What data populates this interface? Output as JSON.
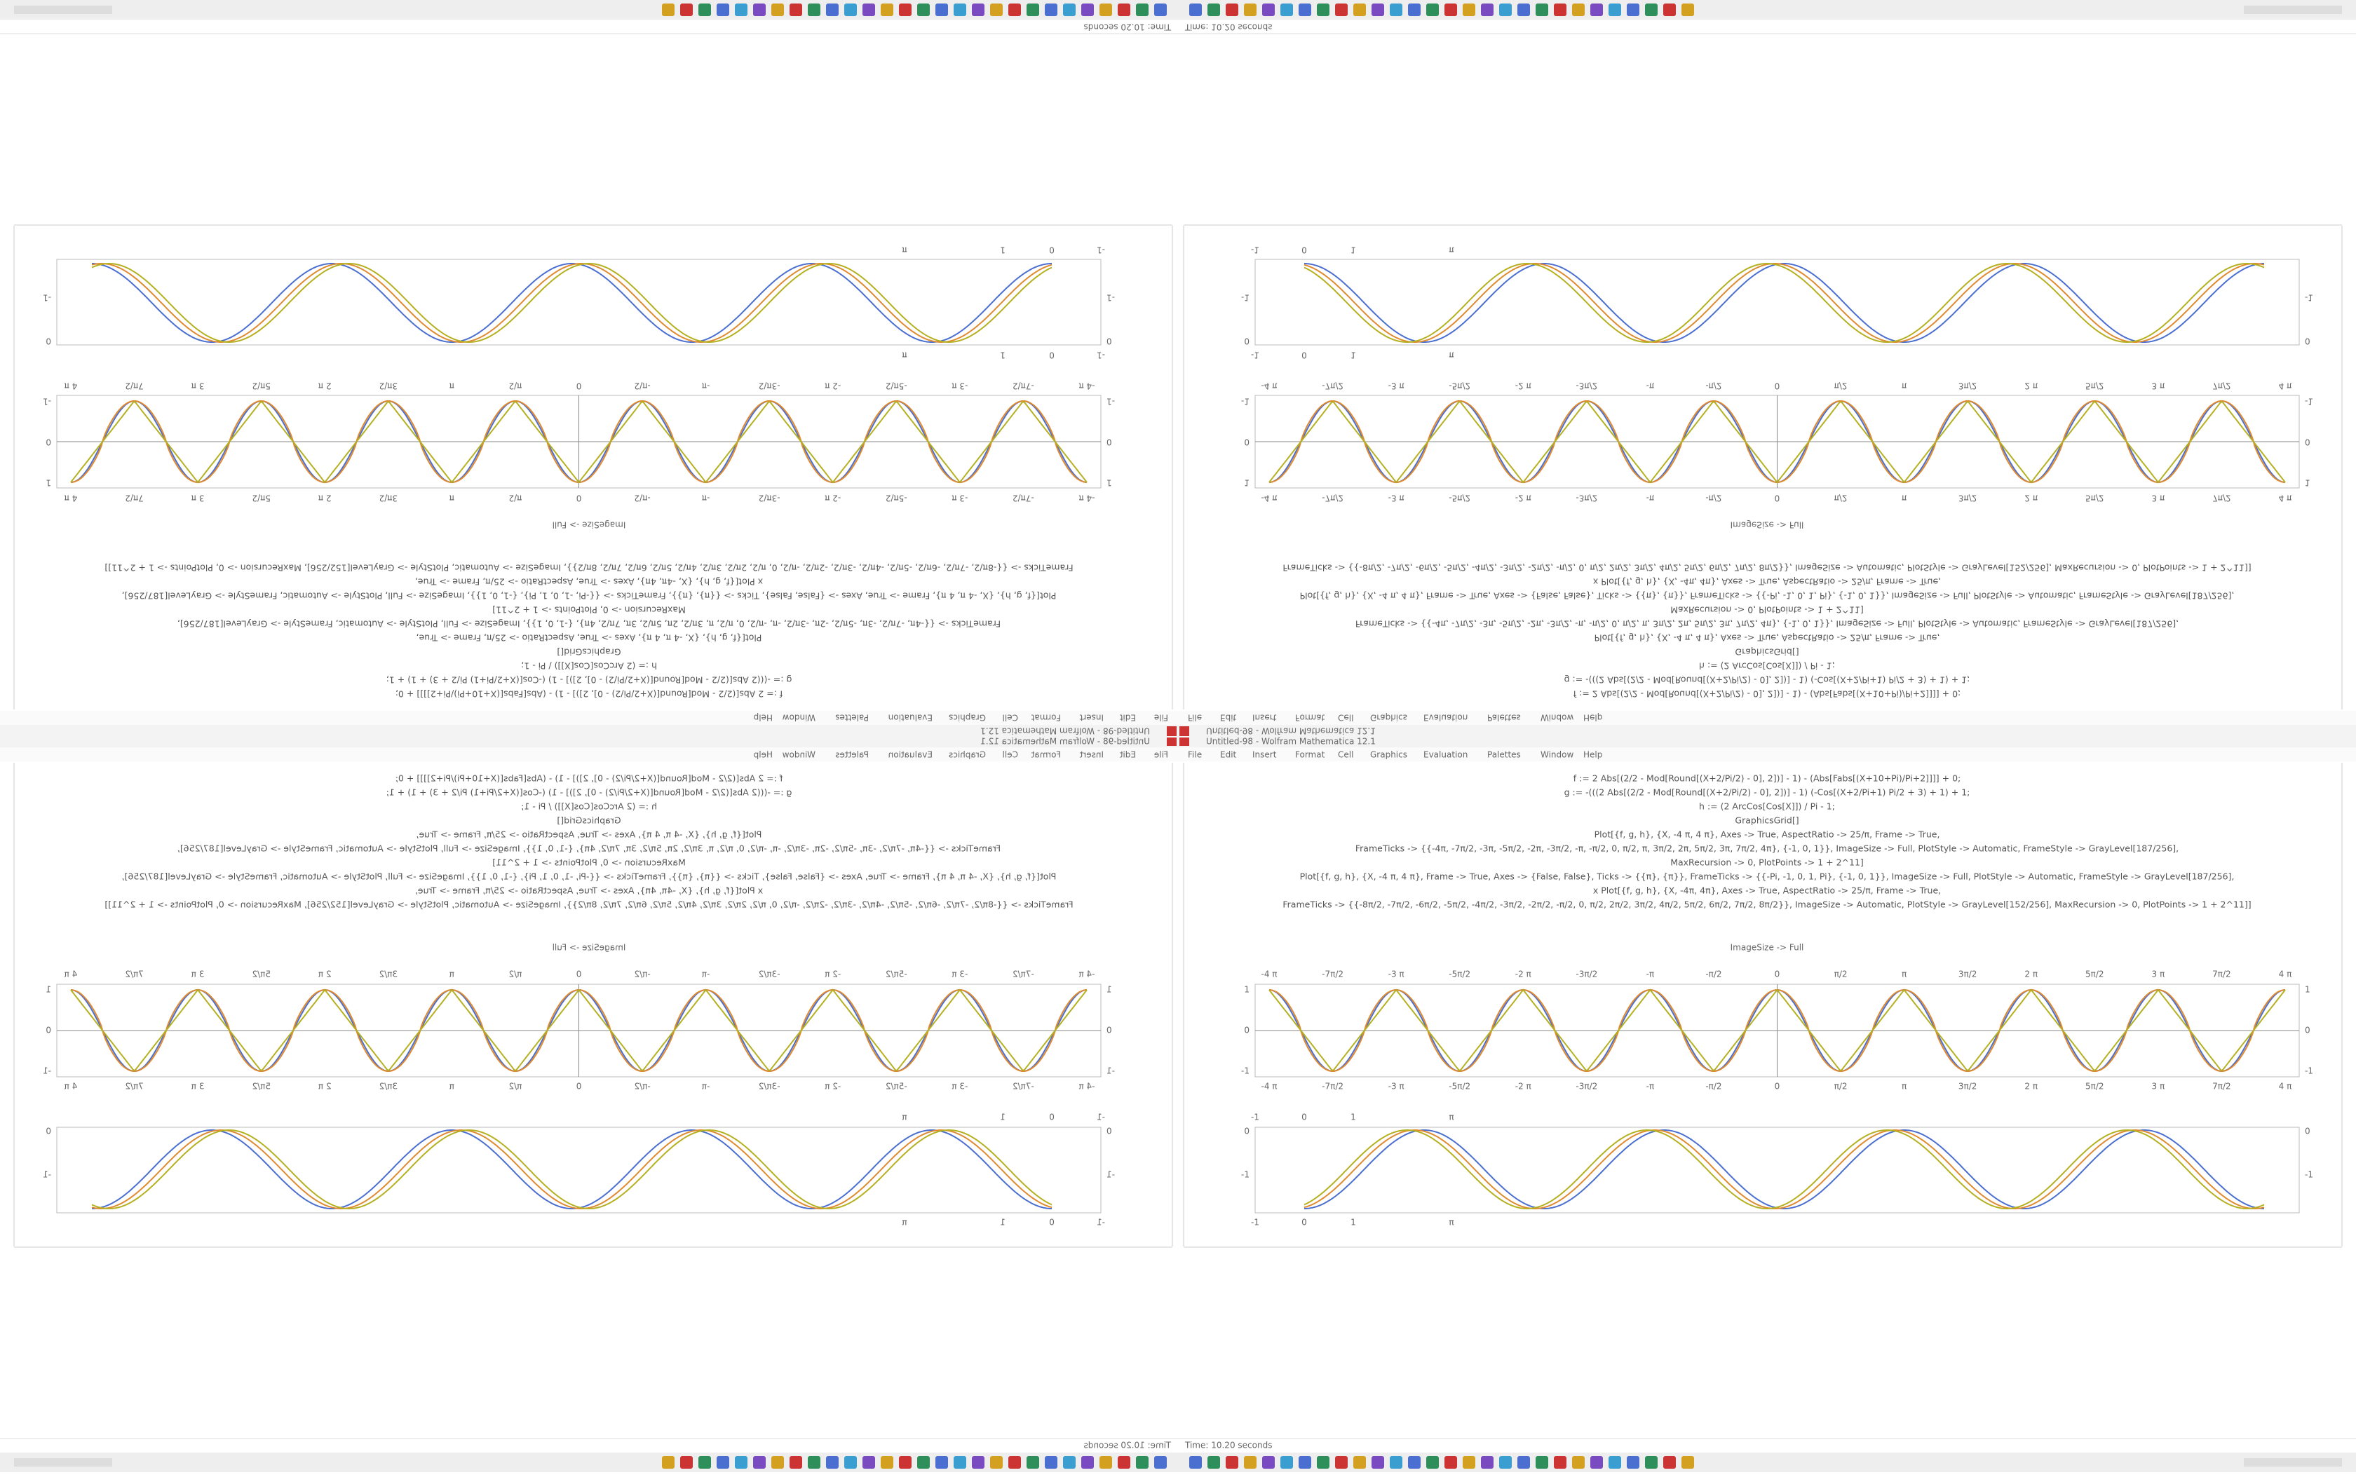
{
  "window_title": "Untitled-98 - Wolfram Mathematica 12.1",
  "menu": [
    "File",
    "Edit",
    "Insert",
    "Format",
    "Cell",
    "Graphics",
    "Evaluation",
    "Palettes",
    "Window",
    "Help"
  ],
  "code_lines": [
    "f := 2 Abs[(2/2 - Mod[Round[(X+2/Pi/2) - 0], 2])] - 1) - (Abs[Fabs[(X+10+Pi)/Pi+2]]]] + 0;",
    "g := -(((2 Abs[(2/2 - Mod[Round[(X+2/Pi/2) - 0], 2])] - 1) (-Cos[(X+2/Pi+1) Pi/2 + 3) + 1) + 1;",
    "h := (2 ArcCos[Cos[X]]) / Pi - 1;",
    "GraphicsGrid[]",
    "Plot[{f, g, h}, {X, -4 π, 4 π}, Axes -> True, AspectRatio -> 25/π, Frame -> True,",
    "FrameTicks -> {{-4π, -7π/2, -3π, -5π/2, -2π, -3π/2, -π, -π/2, 0, π/2, π, 3π/2, 2π, 5π/2, 3π, 7π/2, 4π}, {-1, 0, 1}}, ImageSize -> Full, PlotStyle -> Automatic, FrameStyle -> GrayLevel[187/256],",
    "MaxRecursion -> 0, PlotPoints -> 1 + 2^11]",
    "Plot[{f, g, h}, {X, -4 π, 4 π}, Frame -> True, Axes -> {False, False}, Ticks -> {{π}, {π}}, FrameTicks -> {{-Pi, -1, 0, 1, Pi}, {-1, 0, 1}}, ImageSize -> Full, PlotStyle -> Automatic, FrameStyle -> GrayLevel[187/256],",
    "x Plot[{f, g, h}, {X, -4π, 4π}, Axes -> True, AspectRatio -> 25/π, Frame -> True,",
    "FrameTicks -> {{-8π/2, -7π/2, -6π/2, -5π/2, -4π/2, -3π/2, -2π/2, -π/2, 0, π/2, 2π/2, 3π/2, 4π/2, 5π/2, 6π/2, 7π/2, 8π/2}}, ImageSize -> Automatic, PlotStyle -> GrayLevel[152/256], MaxRecursion -> 0, PlotPoints -> 1 + 2^11]]"
  ],
  "output_label": "ImageSize -> Full",
  "plot1": {
    "xticks": [
      "-4 π",
      "-7π/2",
      "-3 π",
      "-5π/2",
      "-2 π",
      "-3π/2",
      "-π",
      "-π/2",
      "0",
      "π/2",
      "π",
      "3π/2",
      "2 π",
      "5π/2",
      "3 π",
      "7π/2",
      "4 π"
    ],
    "yticks": [
      "1",
      "0",
      "-1"
    ]
  },
  "plot2": {
    "xticks": [
      "-1",
      "0",
      "1",
      "π"
    ],
    "yticks": [
      "0",
      "-1"
    ]
  },
  "status": "Time: 10.20 seconds"
}
